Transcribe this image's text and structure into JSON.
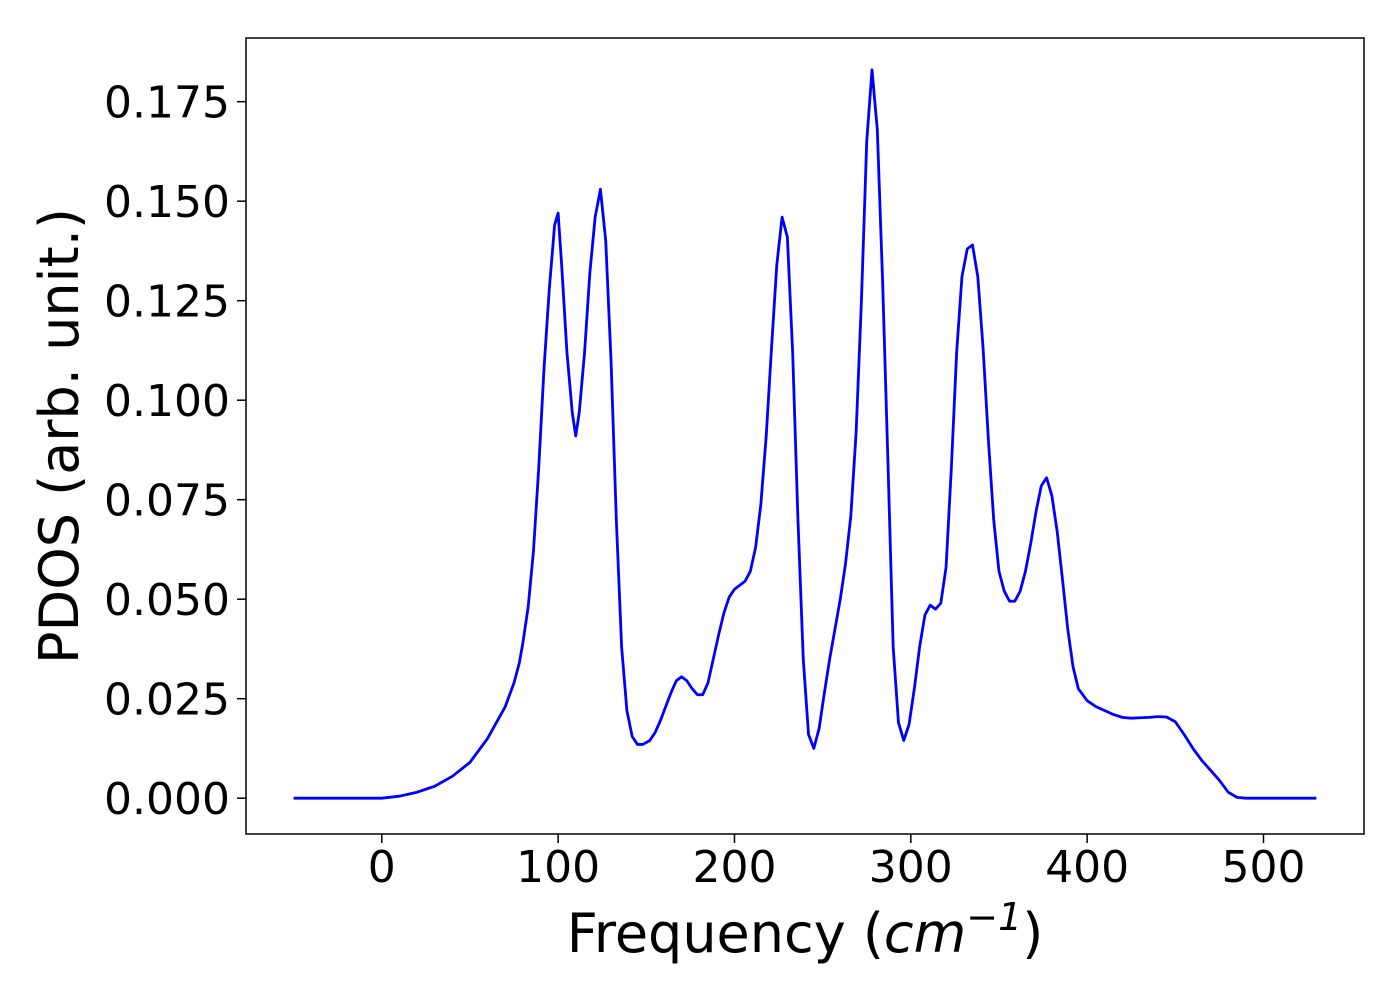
{
  "chart_data": {
    "type": "line",
    "title": "",
    "xlabel": "Frequency (cm⁻¹)",
    "xlabel_parts": {
      "prefix": "Frequency (",
      "variable": "cm",
      "exponent": "−1",
      "suffix": ")"
    },
    "ylabel": "PDOS (arb. unit.)",
    "xlim": [
      -77,
      557
    ],
    "ylim": [
      -0.009,
      0.191
    ],
    "xticks": [
      0,
      100,
      200,
      300,
      400,
      500
    ],
    "xtick_labels": [
      "0",
      "100",
      "200",
      "300",
      "400",
      "500"
    ],
    "yticks": [
      0.0,
      0.025,
      0.05,
      0.075,
      0.1,
      0.125,
      0.15,
      0.175
    ],
    "ytick_labels": [
      "0.000",
      "0.025",
      "0.050",
      "0.075",
      "0.100",
      "0.125",
      "0.150",
      "0.175"
    ],
    "grid": false,
    "legend": "none",
    "series": [
      {
        "color": "#0000ff",
        "x": [
          -50,
          -20,
          0,
          10,
          20,
          30,
          40,
          50,
          60,
          70,
          75,
          78,
          80,
          83,
          86,
          89,
          92,
          95,
          98,
          100,
          102,
          105,
          108,
          110,
          112,
          115,
          118,
          121,
          124,
          127,
          130,
          133,
          136,
          139,
          142,
          145,
          148,
          152,
          155,
          158,
          161,
          164,
          167,
          170,
          173,
          176,
          179,
          182,
          185,
          188,
          191,
          194,
          197,
          200,
          203,
          206,
          209,
          212,
          215,
          218,
          221,
          224,
          227,
          230,
          233,
          236,
          239,
          242,
          245,
          248,
          251,
          254,
          257,
          260,
          263,
          266,
          269,
          272,
          275,
          278,
          281,
          284,
          287,
          290,
          293,
          296,
          299,
          302,
          305,
          308,
          311,
          314,
          317,
          320,
          323,
          326,
          329,
          332,
          335,
          338,
          341,
          344,
          347,
          350,
          353,
          356,
          359,
          362,
          365,
          368,
          371,
          374,
          377,
          380,
          383,
          386,
          389,
          392,
          395,
          400,
          405,
          410,
          415,
          420,
          425,
          430,
          435,
          440,
          445,
          450,
          455,
          460,
          465,
          470,
          475,
          480,
          485,
          490,
          500,
          510,
          530
        ],
        "y": [
          0.0,
          0.0,
          0.0,
          0.0005,
          0.0015,
          0.003,
          0.0055,
          0.009,
          0.015,
          0.023,
          0.029,
          0.034,
          0.039,
          0.048,
          0.062,
          0.083,
          0.108,
          0.128,
          0.144,
          0.147,
          0.134,
          0.112,
          0.097,
          0.091,
          0.097,
          0.112,
          0.132,
          0.146,
          0.153,
          0.14,
          0.11,
          0.07,
          0.038,
          0.022,
          0.0155,
          0.0135,
          0.0135,
          0.0145,
          0.0165,
          0.0195,
          0.023,
          0.0265,
          0.0295,
          0.0305,
          0.0295,
          0.0275,
          0.026,
          0.026,
          0.029,
          0.035,
          0.041,
          0.0465,
          0.0505,
          0.0525,
          0.0535,
          0.0545,
          0.057,
          0.063,
          0.074,
          0.091,
          0.113,
          0.134,
          0.146,
          0.141,
          0.112,
          0.07,
          0.035,
          0.016,
          0.0125,
          0.0175,
          0.0265,
          0.035,
          0.0425,
          0.05,
          0.059,
          0.071,
          0.092,
          0.125,
          0.165,
          0.183,
          0.168,
          0.13,
          0.085,
          0.038,
          0.019,
          0.0145,
          0.0185,
          0.0275,
          0.038,
          0.046,
          0.0485,
          0.0475,
          0.049,
          0.058,
          0.083,
          0.112,
          0.131,
          0.138,
          0.139,
          0.131,
          0.113,
          0.09,
          0.07,
          0.057,
          0.052,
          0.0495,
          0.0495,
          0.052,
          0.057,
          0.064,
          0.072,
          0.0785,
          0.0805,
          0.076,
          0.067,
          0.055,
          0.0425,
          0.033,
          0.0275,
          0.0245,
          0.023,
          0.022,
          0.021,
          0.0203,
          0.0201,
          0.0202,
          0.0203,
          0.0205,
          0.0204,
          0.0192,
          0.016,
          0.0125,
          0.0095,
          0.007,
          0.0045,
          0.0015,
          0.0002,
          0.0,
          0.0,
          0.0,
          0.0
        ]
      }
    ]
  }
}
